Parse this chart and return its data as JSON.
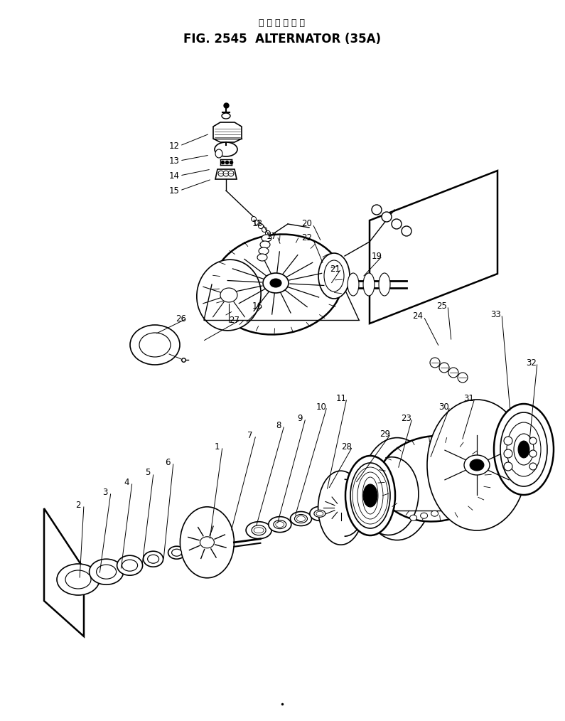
{
  "title_japanese": "オ ル タ ネ ー タ",
  "title_english": "FIG. 2545  ALTERNATOR (35A)",
  "bg_color": "#ffffff",
  "fig_width": 7.95,
  "fig_height": 10.14
}
